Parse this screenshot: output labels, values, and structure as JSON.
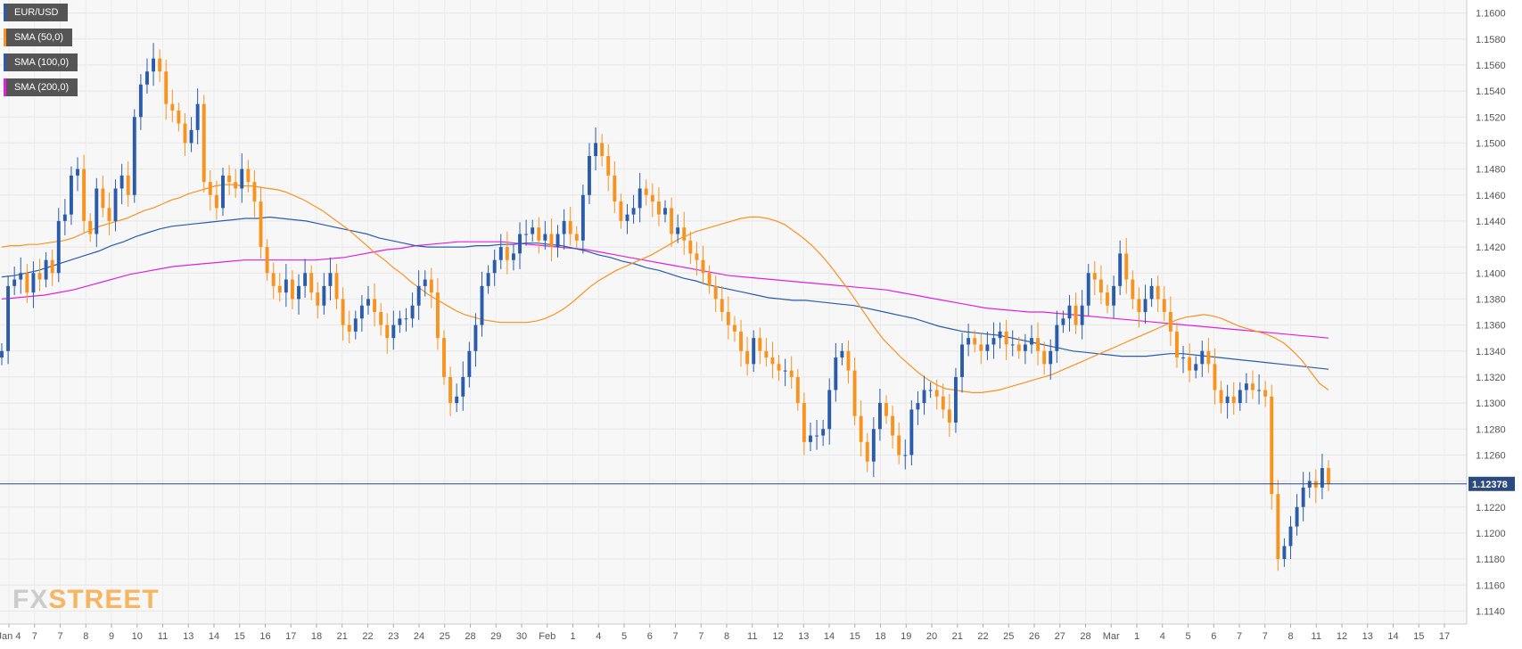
{
  "legend": [
    {
      "label": "EUR/USD",
      "color": "#2a5caa"
    },
    {
      "label": "SMA (50,0)",
      "color": "#f7931e"
    },
    {
      "label": "SMA (100,0)",
      "color": "#2a5caa"
    },
    {
      "label": "SMA (200,0)",
      "color": "#e020e0"
    }
  ],
  "logo": {
    "fx": "FX",
    "street": "STREET"
  },
  "chart_data": {
    "type": "candlestick",
    "symbol": "EUR/USD",
    "last_price": "1.12378",
    "ylim": [
      1.113,
      1.161
    ],
    "y_ticks": [
      "1.1140",
      "1.1160",
      "1.1180",
      "1.1200",
      "1.1220",
      "1.1240",
      "1.1260",
      "1.1280",
      "1.1300",
      "1.1320",
      "1.1340",
      "1.1360",
      "1.1380",
      "1.1400",
      "1.1420",
      "1.1440",
      "1.1460",
      "1.1480",
      "1.1500",
      "1.1520",
      "1.1540",
      "1.1560",
      "1.1580",
      "1.1600"
    ],
    "x_ticks": [
      "Jan 4",
      "7",
      "7",
      "8",
      "9",
      "10",
      "11",
      "13",
      "14",
      "15",
      "16",
      "17",
      "18",
      "21",
      "22",
      "23",
      "24",
      "25",
      "28",
      "29",
      "30",
      "Feb",
      "1",
      "4",
      "5",
      "6",
      "7",
      "7",
      "8",
      "11",
      "12",
      "13",
      "14",
      "15",
      "18",
      "19",
      "20",
      "21",
      "22",
      "25",
      "26",
      "27",
      "28",
      "Mar",
      "1",
      "4",
      "5",
      "6",
      "7",
      "7",
      "8",
      "11",
      "12",
      "13",
      "14",
      "15",
      "17"
    ],
    "grid": true,
    "colors": {
      "up": "#2a5caa",
      "down": "#f7931e",
      "sma50": "#f7931e",
      "sma100": "#2a5caa",
      "sma200": "#e020e0",
      "grid": "#e6e6e6",
      "plot_bg": "#f5f5f5"
    },
    "candles_close": [
      1.134,
      1.139,
      1.1395,
      1.14,
      1.1385,
      1.14,
      1.1395,
      1.141,
      1.14,
      1.144,
      1.1445,
      1.1475,
      1.148,
      1.144,
      1.143,
      1.1465,
      1.145,
      1.144,
      1.1465,
      1.1475,
      1.146,
      1.152,
      1.1545,
      1.1555,
      1.1565,
      1.1555,
      1.153,
      1.1525,
      1.1515,
      1.15,
      1.151,
      1.153,
      1.147,
      1.146,
      1.145,
      1.1475,
      1.147,
      1.1465,
      1.148,
      1.147,
      1.1455,
      1.142,
      1.14,
      1.139,
      1.1385,
      1.1395,
      1.138,
      1.139,
      1.14,
      1.1385,
      1.1375,
      1.139,
      1.14,
      1.138,
      1.136,
      1.1355,
      1.1365,
      1.1375,
      1.138,
      1.137,
      1.136,
      1.135,
      1.136,
      1.1365,
      1.1365,
      1.1375,
      1.139,
      1.1395,
      1.1385,
      1.135,
      1.132,
      1.13,
      1.1305,
      1.132,
      1.134,
      1.136,
      1.139,
      1.14,
      1.141,
      1.142,
      1.141,
      1.1415,
      1.143,
      1.143,
      1.1435,
      1.1425,
      1.143,
      1.142,
      1.143,
      1.144,
      1.143,
      1.1425,
      1.146,
      1.149,
      1.15,
      1.149,
      1.1475,
      1.1455,
      1.144,
      1.1445,
      1.145,
      1.1465,
      1.146,
      1.1455,
      1.1445,
      1.145,
      1.143,
      1.1435,
      1.1425,
      1.1415,
      1.141,
      1.14,
      1.139,
      1.138,
      1.137,
      1.136,
      1.1355,
      1.134,
      1.133,
      1.135,
      1.134,
      1.1335,
      1.133,
      1.1325,
      1.1325,
      1.132,
      1.13,
      1.127,
      1.1275,
      1.1275,
      1.128,
      1.131,
      1.1335,
      1.134,
      1.1325,
      1.129,
      1.127,
      1.1255,
      1.128,
      1.13,
      1.129,
      1.1275,
      1.126,
      1.126,
      1.1295,
      1.13,
      1.131,
      1.131,
      1.1305,
      1.1295,
      1.1285,
      1.132,
      1.1345,
      1.135,
      1.1345,
      1.134,
      1.1345,
      1.135,
      1.1355,
      1.1345,
      1.1345,
      1.134,
      1.1345,
      1.135,
      1.134,
      1.133,
      1.134,
      1.136,
      1.1365,
      1.1375,
      1.136,
      1.1375,
      1.14,
      1.1395,
      1.1385,
      1.1375,
      1.139,
      1.1415,
      1.1395,
      1.138,
      1.137,
      1.138,
      1.139,
      1.138,
      1.137,
      1.1355,
      1.1335,
      1.1335,
      1.1325,
      1.133,
      1.134,
      1.133,
      1.131,
      1.13,
      1.1305,
      1.13,
      1.131,
      1.1315,
      1.131,
      1.131,
      1.1305,
      1.123,
      1.118,
      1.119,
      1.1205,
      1.122,
      1.1235,
      1.124,
      1.1235,
      1.125,
      1.1238
    ],
    "sma50": [
      1.142,
      1.1421,
      1.1421,
      1.1422,
      1.1422,
      1.1423,
      1.1424,
      1.1425,
      1.1427,
      1.143,
      1.1433,
      1.1436,
      1.1438,
      1.144,
      1.1442,
      1.1445,
      1.1448,
      1.145,
      1.1453,
      1.1456,
      1.1458,
      1.1461,
      1.1463,
      1.1465,
      1.1467,
      1.1468,
      1.1468,
      1.1467,
      1.1467,
      1.1466,
      1.1465,
      1.1464,
      1.1462,
      1.1459,
      1.1456,
      1.1452,
      1.1448,
      1.1443,
      1.1438,
      1.1433,
      1.1427,
      1.1421,
      1.1415,
      1.141,
      1.1404,
      1.1399,
      1.1393,
      1.1388,
      1.1383,
      1.1379,
      1.1375,
      1.1371,
      1.1368,
      1.1366,
      1.1364,
      1.1363,
      1.1362,
      1.1362,
      1.1362,
      1.1362,
      1.1363,
      1.1365,
      1.1368,
      1.1372,
      1.1377,
      1.1383,
      1.1389,
      1.1394,
      1.1398,
      1.1402,
      1.1405,
      1.1408,
      1.1411,
      1.1414,
      1.1418,
      1.1422,
      1.1426,
      1.1429,
      1.1432,
      1.1434,
      1.1436,
      1.1438,
      1.144,
      1.1442,
      1.1443,
      1.1443,
      1.1442,
      1.144,
      1.1437,
      1.1432,
      1.1427,
      1.1421,
      1.1414,
      1.1406,
      1.1397,
      1.1388,
      1.1378,
      1.1368,
      1.1358,
      1.1349,
      1.1342,
      1.1335,
      1.1329,
      1.1323,
      1.1318,
      1.1314,
      1.1311,
      1.131,
      1.1309,
      1.1308,
      1.1308,
      1.1309,
      1.131,
      1.1312,
      1.1314,
      1.1316,
      1.1318,
      1.132,
      1.1322,
      1.1325,
      1.1328,
      1.1331,
      1.1334,
      1.1337,
      1.134,
      1.1343,
      1.1346,
      1.1349,
      1.1352,
      1.1355,
      1.1358,
      1.1361,
      1.1364,
      1.1366,
      1.1367,
      1.1368,
      1.1367,
      1.1365,
      1.1362,
      1.1359,
      1.1357,
      1.1355,
      1.1353,
      1.135,
      1.1346,
      1.134,
      1.1333,
      1.1324,
      1.1315,
      1.131
    ],
    "sma100": [
      1.1397,
      1.1398,
      1.14,
      1.1402,
      1.1405,
      1.1408,
      1.1411,
      1.1414,
      1.1417,
      1.1421,
      1.1424,
      1.1428,
      1.1431,
      1.1434,
      1.1436,
      1.1437,
      1.1438,
      1.1439,
      1.144,
      1.1441,
      1.1442,
      1.1442,
      1.1443,
      1.1442,
      1.1441,
      1.144,
      1.1438,
      1.1436,
      1.1434,
      1.1432,
      1.143,
      1.1427,
      1.1425,
      1.1423,
      1.1421,
      1.142,
      1.142,
      1.142,
      1.142,
      1.1421,
      1.1421,
      1.1422,
      1.1422,
      1.1423,
      1.1423,
      1.1422,
      1.1421,
      1.1419,
      1.1417,
      1.1414,
      1.1412,
      1.1409,
      1.1407,
      1.1404,
      1.1402,
      1.1399,
      1.1396,
      1.1394,
      1.1391,
      1.1389,
      1.1387,
      1.1385,
      1.1383,
      1.1381,
      1.138,
      1.1379,
      1.1379,
      1.1378,
      1.1377,
      1.1376,
      1.1375,
      1.1373,
      1.1371,
      1.1369,
      1.1367,
      1.1365,
      1.1362,
      1.1359,
      1.1357,
      1.1355,
      1.1354,
      1.1353,
      1.1352,
      1.135,
      1.1348,
      1.1346,
      1.1344,
      1.1342,
      1.134,
      1.1339,
      1.1338,
      1.1337,
      1.1336,
      1.1336,
      1.1336,
      1.1337,
      1.1338,
      1.1338,
      1.1337,
      1.1336,
      1.1335,
      1.1334,
      1.1333,
      1.1332,
      1.1331,
      1.133,
      1.1329,
      1.1328,
      1.1327,
      1.1326
    ],
    "sma200": [
      1.138,
      1.1381,
      1.1382,
      1.1383,
      1.1385,
      1.1387,
      1.139,
      1.1393,
      1.1396,
      1.1399,
      1.1401,
      1.1403,
      1.1405,
      1.1406,
      1.1407,
      1.1408,
      1.1409,
      1.141,
      1.141,
      1.141,
      1.141,
      1.141,
      1.141,
      1.1411,
      1.1412,
      1.1414,
      1.1416,
      1.1418,
      1.1419,
      1.1421,
      1.1422,
      1.1423,
      1.1424,
      1.1424,
      1.1424,
      1.1424,
      1.1423,
      1.1422,
      1.1421,
      1.142,
      1.1419,
      1.1418,
      1.1416,
      1.1414,
      1.1412,
      1.141,
      1.1408,
      1.1406,
      1.1404,
      1.1402,
      1.14,
      1.1398,
      1.1397,
      1.1396,
      1.1395,
      1.1394,
      1.1393,
      1.1392,
      1.1391,
      1.139,
      1.1389,
      1.1388,
      1.1387,
      1.1385,
      1.1383,
      1.1381,
      1.1379,
      1.1377,
      1.1375,
      1.1373,
      1.1372,
      1.1371,
      1.137,
      1.137,
      1.1369,
      1.1368,
      1.1367,
      1.1366,
      1.1365,
      1.1364,
      1.1363,
      1.1362,
      1.1361,
      1.136,
      1.1359,
      1.1358,
      1.1357,
      1.1356,
      1.1355,
      1.1354,
      1.1353,
      1.1352,
      1.1351,
      1.135
    ]
  }
}
